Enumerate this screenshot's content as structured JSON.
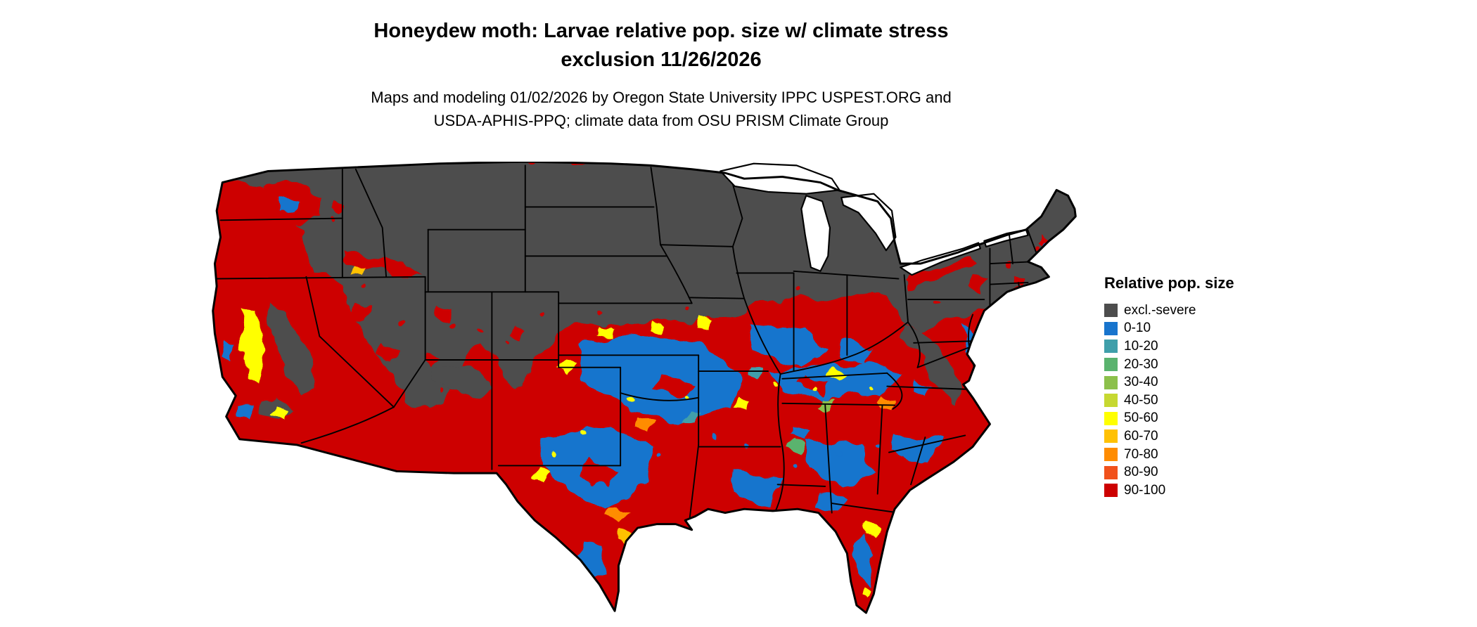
{
  "title": {
    "line1": "Honeydew moth: Larvae relative pop. size w/ climate stress",
    "line2": "exclusion 11/26/2026"
  },
  "subtitle": {
    "line1": "Maps and modeling 01/02/2026 by Oregon State University IPPC USPEST.ORG and",
    "line2": "USDA-APHIS-PPQ; climate data from OSU PRISM Climate Group"
  },
  "legend": {
    "title": "Relative pop. size",
    "items": [
      {
        "label": "excl.-severe",
        "color": "#4d4d4d"
      },
      {
        "label": "0-10",
        "color": "#1874cd"
      },
      {
        "label": "10-20",
        "color": "#3f9faa"
      },
      {
        "label": "20-30",
        "color": "#5ab36e"
      },
      {
        "label": "30-40",
        "color": "#8cc04b"
      },
      {
        "label": "40-50",
        "color": "#c6d831"
      },
      {
        "label": "50-60",
        "color": "#ffff00"
      },
      {
        "label": "60-70",
        "color": "#ffc104"
      },
      {
        "label": "70-80",
        "color": "#ff8c00"
      },
      {
        "label": "80-90",
        "color": "#f1511b"
      },
      {
        "label": "90-100",
        "color": "#cd0000"
      }
    ]
  }
}
